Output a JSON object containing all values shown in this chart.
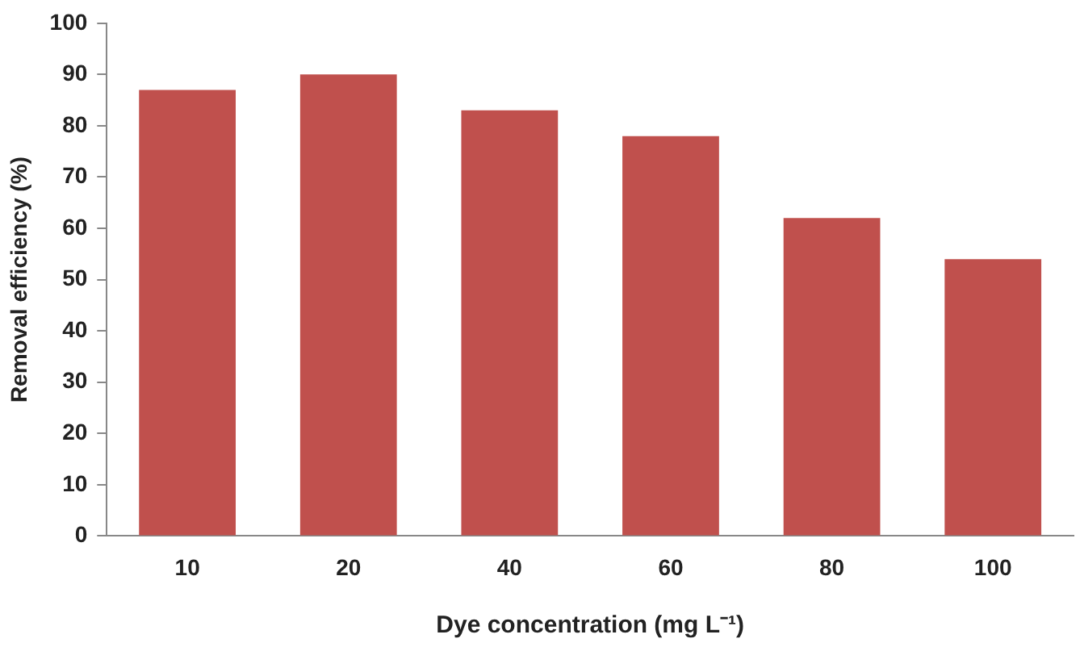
{
  "chart_data": {
    "type": "bar",
    "xlabel": "Dye concentration (mg L⁻¹)",
    "ylabel": "Removal efficiency (%)",
    "categories": [
      "10",
      "20",
      "40",
      "60",
      "80",
      "100"
    ],
    "values": [
      87,
      90,
      83,
      78,
      62,
      54
    ],
    "color": "#c0504d",
    "ylim": [
      0,
      100
    ],
    "yticks": [
      0,
      10,
      20,
      30,
      40,
      50,
      60,
      70,
      80,
      90,
      100
    ],
    "grid": false,
    "legend": false
  }
}
